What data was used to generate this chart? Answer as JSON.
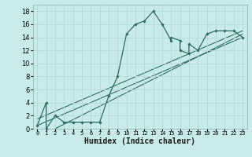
{
  "xlabel": "Humidex (Indice chaleur)",
  "bg_color": "#c8eae8",
  "line_color": "#2d6b63",
  "grid_color": "#b8d8d5",
  "xlim": [
    -0.5,
    23.5
  ],
  "ylim": [
    0,
    19
  ],
  "xticks": [
    0,
    1,
    2,
    3,
    4,
    5,
    6,
    7,
    8,
    9,
    10,
    11,
    12,
    13,
    14,
    15,
    16,
    17,
    18,
    19,
    20,
    21,
    22,
    23
  ],
  "yticks": [
    0,
    2,
    4,
    6,
    8,
    10,
    12,
    14,
    16,
    18
  ],
  "main_x": [
    0,
    1,
    1,
    2,
    3,
    4,
    5,
    6,
    7,
    8,
    9,
    10,
    11,
    12,
    13,
    14,
    15,
    15,
    16,
    16,
    17,
    17,
    18,
    19,
    20,
    21,
    22,
    23
  ],
  "main_y": [
    0.5,
    4,
    0,
    2,
    1,
    1,
    1,
    1,
    1,
    5,
    8,
    14.5,
    16,
    16.5,
    18,
    16,
    13.5,
    14,
    13.5,
    12,
    11.5,
    13,
    12,
    14.5,
    15,
    15,
    15,
    14
  ],
  "line1_x": [
    0,
    23
  ],
  "line1_y": [
    0.5,
    14.0
  ],
  "line2_x": [
    0,
    23
  ],
  "line2_y": [
    1.5,
    15.0
  ],
  "line3_x": [
    2,
    23
  ],
  "line3_y": [
    0.0,
    14.5
  ]
}
